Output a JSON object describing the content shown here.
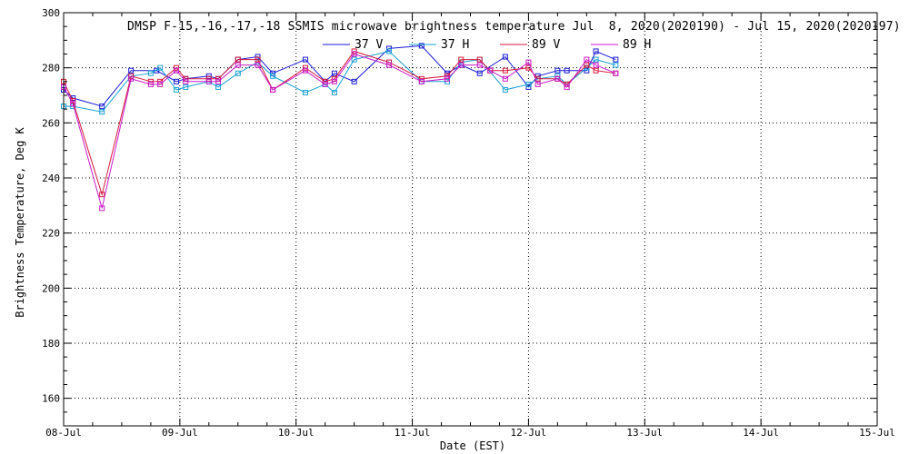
{
  "chart_data": {
    "type": "line",
    "title": "DMSP F-15,-16,-17,-18 SSMIS microwave brightness temperature Jul  8, 2020(2020190) - Jul 15, 2020(2020197)",
    "xlabel": "Date (EST)",
    "ylabel": "Brightness Temperature, Deg K",
    "xlim": [
      0,
      7
    ],
    "ylim": [
      150,
      300
    ],
    "x_ticks": [
      "08-Jul",
      "09-Jul",
      "10-Jul",
      "11-Jul",
      "12-Jul",
      "13-Jul",
      "14-Jul",
      "15-Jul"
    ],
    "y_ticks": [
      160,
      180,
      200,
      220,
      240,
      260,
      280,
      300
    ],
    "grid": true,
    "legend_position": "top-center",
    "series": [
      {
        "name": "37 V",
        "color": "#1a1ad4",
        "x": [
          0.0,
          0.08,
          0.33,
          0.58,
          0.8,
          0.97,
          1.05,
          1.25,
          1.33,
          1.5,
          1.67,
          1.8,
          2.08,
          2.25,
          2.33,
          2.5,
          2.8,
          3.08,
          3.3,
          3.42,
          3.58,
          3.8,
          4.0,
          4.08,
          4.25,
          4.33,
          4.5,
          4.58,
          4.75
        ],
        "y": [
          272,
          269,
          266,
          279,
          279,
          275,
          276,
          277,
          276,
          283,
          284,
          278,
          283,
          275,
          278,
          275,
          287,
          288,
          278,
          281,
          278,
          284,
          273,
          277,
          279,
          279,
          279,
          286,
          283
        ]
      },
      {
        "name": "37 H",
        "color": "#1aa0d4",
        "x": [
          0.0,
          0.08,
          0.33,
          0.58,
          0.75,
          0.83,
          0.97,
          1.05,
          1.25,
          1.33,
          1.5,
          1.67,
          1.8,
          2.08,
          2.25,
          2.33,
          2.5,
          2.8,
          3.08,
          3.3,
          3.42,
          3.58,
          3.8,
          4.0,
          4.08,
          4.25,
          4.33,
          4.5,
          4.58,
          4.75
        ],
        "y": [
          266,
          266,
          264,
          277,
          278,
          280,
          272,
          273,
          275,
          273,
          278,
          282,
          277,
          271,
          274,
          271,
          283,
          286,
          275,
          275,
          282,
          283,
          272,
          274,
          276,
          277,
          274,
          280,
          283,
          281
        ]
      },
      {
        "name": "89 V",
        "color": "#d41a3c",
        "x": [
          0.0,
          0.08,
          0.33,
          0.58,
          0.75,
          0.83,
          0.97,
          1.05,
          1.25,
          1.33,
          1.5,
          1.67,
          1.8,
          2.08,
          2.25,
          2.33,
          2.5,
          2.8,
          3.08,
          3.3,
          3.42,
          3.58,
          3.67,
          3.8,
          4.0,
          4.08,
          4.25,
          4.33,
          4.5,
          4.58,
          4.75
        ],
        "y": [
          275,
          268,
          234,
          277,
          275,
          275,
          280,
          276,
          276,
          276,
          283,
          283,
          272,
          280,
          275,
          276,
          286,
          282,
          276,
          277,
          283,
          283,
          279,
          279,
          280,
          276,
          276,
          274,
          281,
          279,
          278
        ]
      },
      {
        "name": "89 H",
        "color": "#c81ac8",
        "x": [
          0.0,
          0.08,
          0.33,
          0.58,
          0.75,
          0.83,
          0.97,
          1.05,
          1.25,
          1.33,
          1.5,
          1.67,
          1.8,
          2.08,
          2.25,
          2.33,
          2.5,
          2.8,
          3.08,
          3.3,
          3.42,
          3.58,
          3.67,
          3.8,
          4.0,
          4.08,
          4.25,
          4.33,
          4.5,
          4.58,
          4.75
        ],
        "y": [
          273,
          267,
          229,
          276,
          274,
          274,
          279,
          275,
          275,
          275,
          281,
          281,
          272,
          279,
          274,
          275,
          285,
          281,
          275,
          276,
          281,
          281,
          279,
          276,
          282,
          274,
          276,
          273,
          283,
          281,
          278
        ]
      }
    ]
  }
}
